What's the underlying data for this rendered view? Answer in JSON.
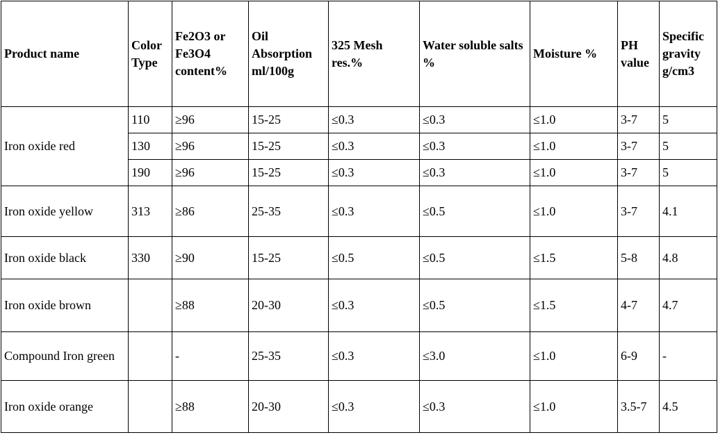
{
  "table": {
    "header": [
      "Product name",
      "Color Type",
      "Fe2O3 or Fe3O4 content%",
      "Oil Absorption ml/100g",
      "325 Mesh res.%",
      "Water soluble salts %",
      "Moisture %",
      "PH value",
      "Specific gravity g/cm3"
    ],
    "groups": [
      {
        "product": "Iron oxide red",
        "rows": [
          {
            "color": "110",
            "values": [
              "≥96",
              "15-25",
              "≤0.3",
              "≤0.3",
              "≤1.0",
              "3-7",
              "5"
            ]
          },
          {
            "color": "130",
            "values": [
              "≥96",
              "15-25",
              "≤0.3",
              "≤0.3",
              "≤1.0",
              "3-7",
              "5"
            ]
          },
          {
            "color": "190",
            "values": [
              "≥96",
              "15-25",
              "≤0.3",
              "≤0.3",
              "≤1.0",
              "3-7",
              "5"
            ]
          }
        ]
      },
      {
        "product": "Iron oxide yellow",
        "rows": [
          {
            "color": "313",
            "values": [
              "≥86",
              "25-35",
              "≤0.3",
              "≤0.5",
              "≤1.0",
              "3-7",
              "4.1"
            ]
          }
        ]
      },
      {
        "product": "Iron oxide black",
        "rows": [
          {
            "color": "330",
            "values": [
              "≥90",
              "15-25",
              "≤0.5",
              "≤0.5",
              "≤1.5",
              "5-8",
              "4.8"
            ]
          }
        ]
      },
      {
        "product": "Iron oxide brown",
        "rows": [
          {
            "values": [
              "≥88",
              "20-30",
              "≤0.3",
              "≤0.5",
              "≤1.5",
              "4-7",
              "4.7"
            ]
          }
        ]
      },
      {
        "product": "Compound Iron green",
        "rows": [
          {
            "values": [
              "-",
              "25-35",
              "≤0.3",
              "≤3.0",
              "≤1.0",
              "6-9",
              "-"
            ]
          }
        ]
      },
      {
        "product": "Iron oxide orange",
        "rows": [
          {
            "values": [
              "≥88",
              "20-30",
              "≤0.3",
              "≤0.3",
              "≤1.0",
              "3.5-7",
              "4.5"
            ]
          }
        ]
      }
    ]
  }
}
